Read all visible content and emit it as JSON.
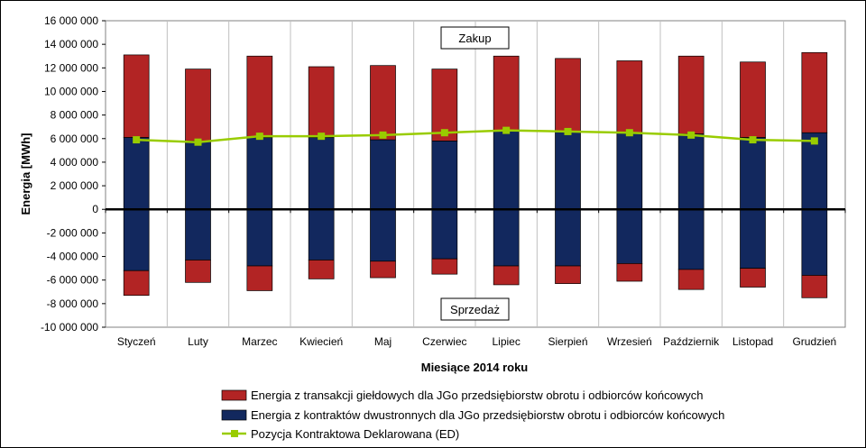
{
  "chart_data": {
    "type": "bar",
    "title": "",
    "xlabel": "Miesiące 2014 roku",
    "ylabel": "Energia [MWh]",
    "ylim": [
      -10000000,
      16000000
    ],
    "ytick_step": 2000000,
    "grid": {
      "vertical": true,
      "horizontal": false
    },
    "legend_position": "bottom",
    "categories": [
      "Styczeń",
      "Luty",
      "Marzec",
      "Kwiecień",
      "Maj",
      "Czerwiec",
      "Lipiec",
      "Sierpień",
      "Wrzesień",
      "Październik",
      "Listopad",
      "Grudzień"
    ],
    "series": [
      {
        "name": "Energia z kontraktów dwustronnych dla JGo przedsiębiorstw obrotu i odbiorców końcowych",
        "color": "#12285e",
        "purchase_values": [
          6100000,
          5800000,
          6100000,
          6100000,
          5900000,
          5800000,
          6700000,
          6600000,
          6500000,
          6400000,
          6100000,
          6500000
        ],
        "sale_values": [
          -5200000,
          -4300000,
          -4800000,
          -4300000,
          -4400000,
          -4200000,
          -4800000,
          -4800000,
          -4600000,
          -5100000,
          -5000000,
          -5600000
        ]
      },
      {
        "name": "Energia z transakcji giełdowych dla JGo przedsiębiorstw obrotu i odbiorców końcowych",
        "color": "#b22424",
        "purchase_values": [
          7000000,
          6100000,
          6900000,
          6000000,
          6300000,
          6100000,
          6300000,
          6200000,
          6100000,
          6600000,
          6400000,
          6800000
        ],
        "sale_values": [
          -2100000,
          -1900000,
          -2100000,
          -1600000,
          -1400000,
          -1300000,
          -1600000,
          -1500000,
          -1500000,
          -1700000,
          -1600000,
          -1900000
        ]
      },
      {
        "name": "Pozycja Kontraktowa Deklarowana (ED)",
        "type": "line",
        "color": "#99cc00",
        "values": [
          5900000,
          5700000,
          6200000,
          6200000,
          6300000,
          6500000,
          6700000,
          6600000,
          6500000,
          6300000,
          5900000,
          5800000
        ]
      }
    ],
    "annotations": [
      "Zakup",
      "Sprzedaż"
    ]
  }
}
